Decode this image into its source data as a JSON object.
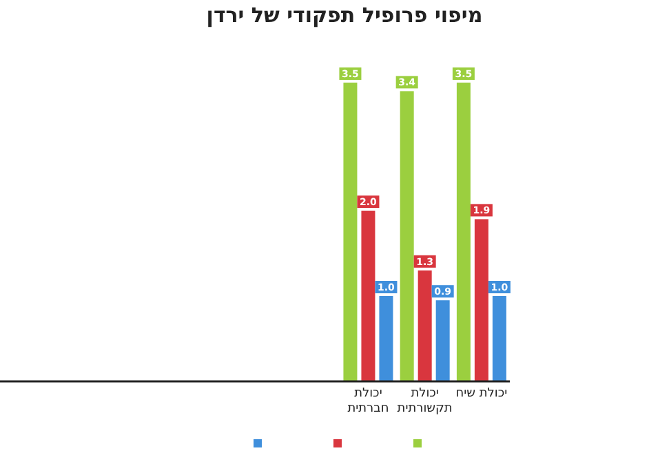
{
  "chart_data": {
    "type": "bar",
    "title": "מיפוי פרופיל תפקודי של ירדן",
    "categories": [
      null,
      null,
      null,
      null,
      null,
      null,
      "יכולת חברתית",
      "יכולת תקשורתית",
      "יכולת שיח"
    ],
    "series": [
      {
        "color": "#9bcf3f",
        "values": [
          null,
          null,
          null,
          null,
          null,
          null,
          3.5,
          3.4,
          3.5
        ],
        "value_labels": [
          null,
          null,
          null,
          null,
          null,
          null,
          "3.5",
          "3.4",
          "3.5"
        ]
      },
      {
        "color": "#d9363e",
        "values": [
          null,
          null,
          null,
          null,
          null,
          null,
          2.0,
          1.3,
          1.9
        ],
        "value_labels": [
          null,
          null,
          null,
          null,
          null,
          null,
          "2.0",
          "1.3",
          "1.9"
        ]
      },
      {
        "color": "#3f8fdc",
        "values": [
          null,
          null,
          null,
          null,
          null,
          null,
          1.0,
          0.95,
          1.0
        ],
        "value_labels": [
          null,
          null,
          null,
          null,
          null,
          null,
          "1.0",
          "0.9",
          "1.0"
        ]
      }
    ],
    "data_labels": true
  }
}
